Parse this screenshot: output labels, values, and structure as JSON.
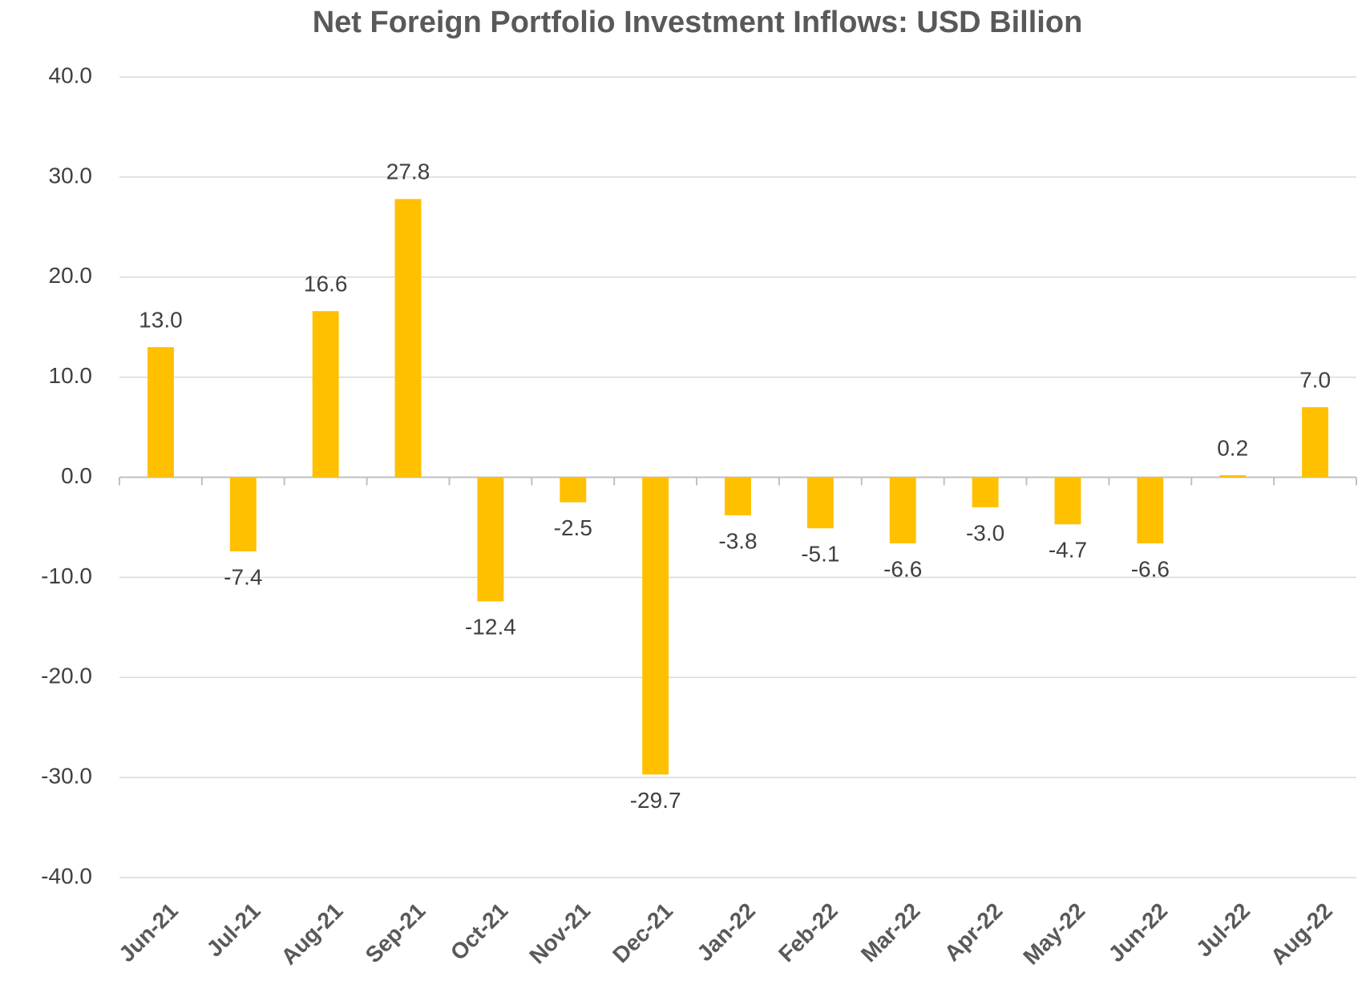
{
  "chart_data": {
    "type": "bar",
    "title": "Net Foreign Portfolio Investment Inflows: USD Billion",
    "categories": [
      "Jun-21",
      "Jul-21",
      "Aug-21",
      "Sep-21",
      "Oct-21",
      "Nov-21",
      "Dec-21",
      "Jan-22",
      "Feb-22",
      "Mar-22",
      "Apr-22",
      "May-22",
      "Jun-22",
      "Jul-22",
      "Aug-22"
    ],
    "values": [
      13.0,
      -7.4,
      16.6,
      27.8,
      -12.4,
      -2.5,
      -29.7,
      -3.8,
      -5.1,
      -6.6,
      -3.0,
      -4.7,
      -6.6,
      0.2,
      7.0
    ],
    "value_labels": [
      "13.0",
      "-7.4",
      "16.6",
      "27.8",
      "-12.4",
      "-2.5",
      "-29.7",
      "-3.8",
      "-5.1",
      "-6.6",
      "-3.0",
      "-4.7",
      "-6.6",
      "0.2",
      "7.0"
    ],
    "color": "#ffc000",
    "ylim": [
      -40,
      40
    ],
    "yticks": [
      {
        "value": -40,
        "label": "-40.0"
      },
      {
        "value": -30,
        "label": "-30.0"
      },
      {
        "value": -20,
        "label": "-20.0"
      },
      {
        "value": -10,
        "label": "-10.0"
      },
      {
        "value": 0,
        "label": "0.0"
      },
      {
        "value": 10,
        "label": "10.0"
      },
      {
        "value": 20,
        "label": "20.0"
      },
      {
        "value": 30,
        "label": "30.0"
      },
      {
        "value": 40,
        "label": "40.0"
      }
    ],
    "grid": true
  }
}
